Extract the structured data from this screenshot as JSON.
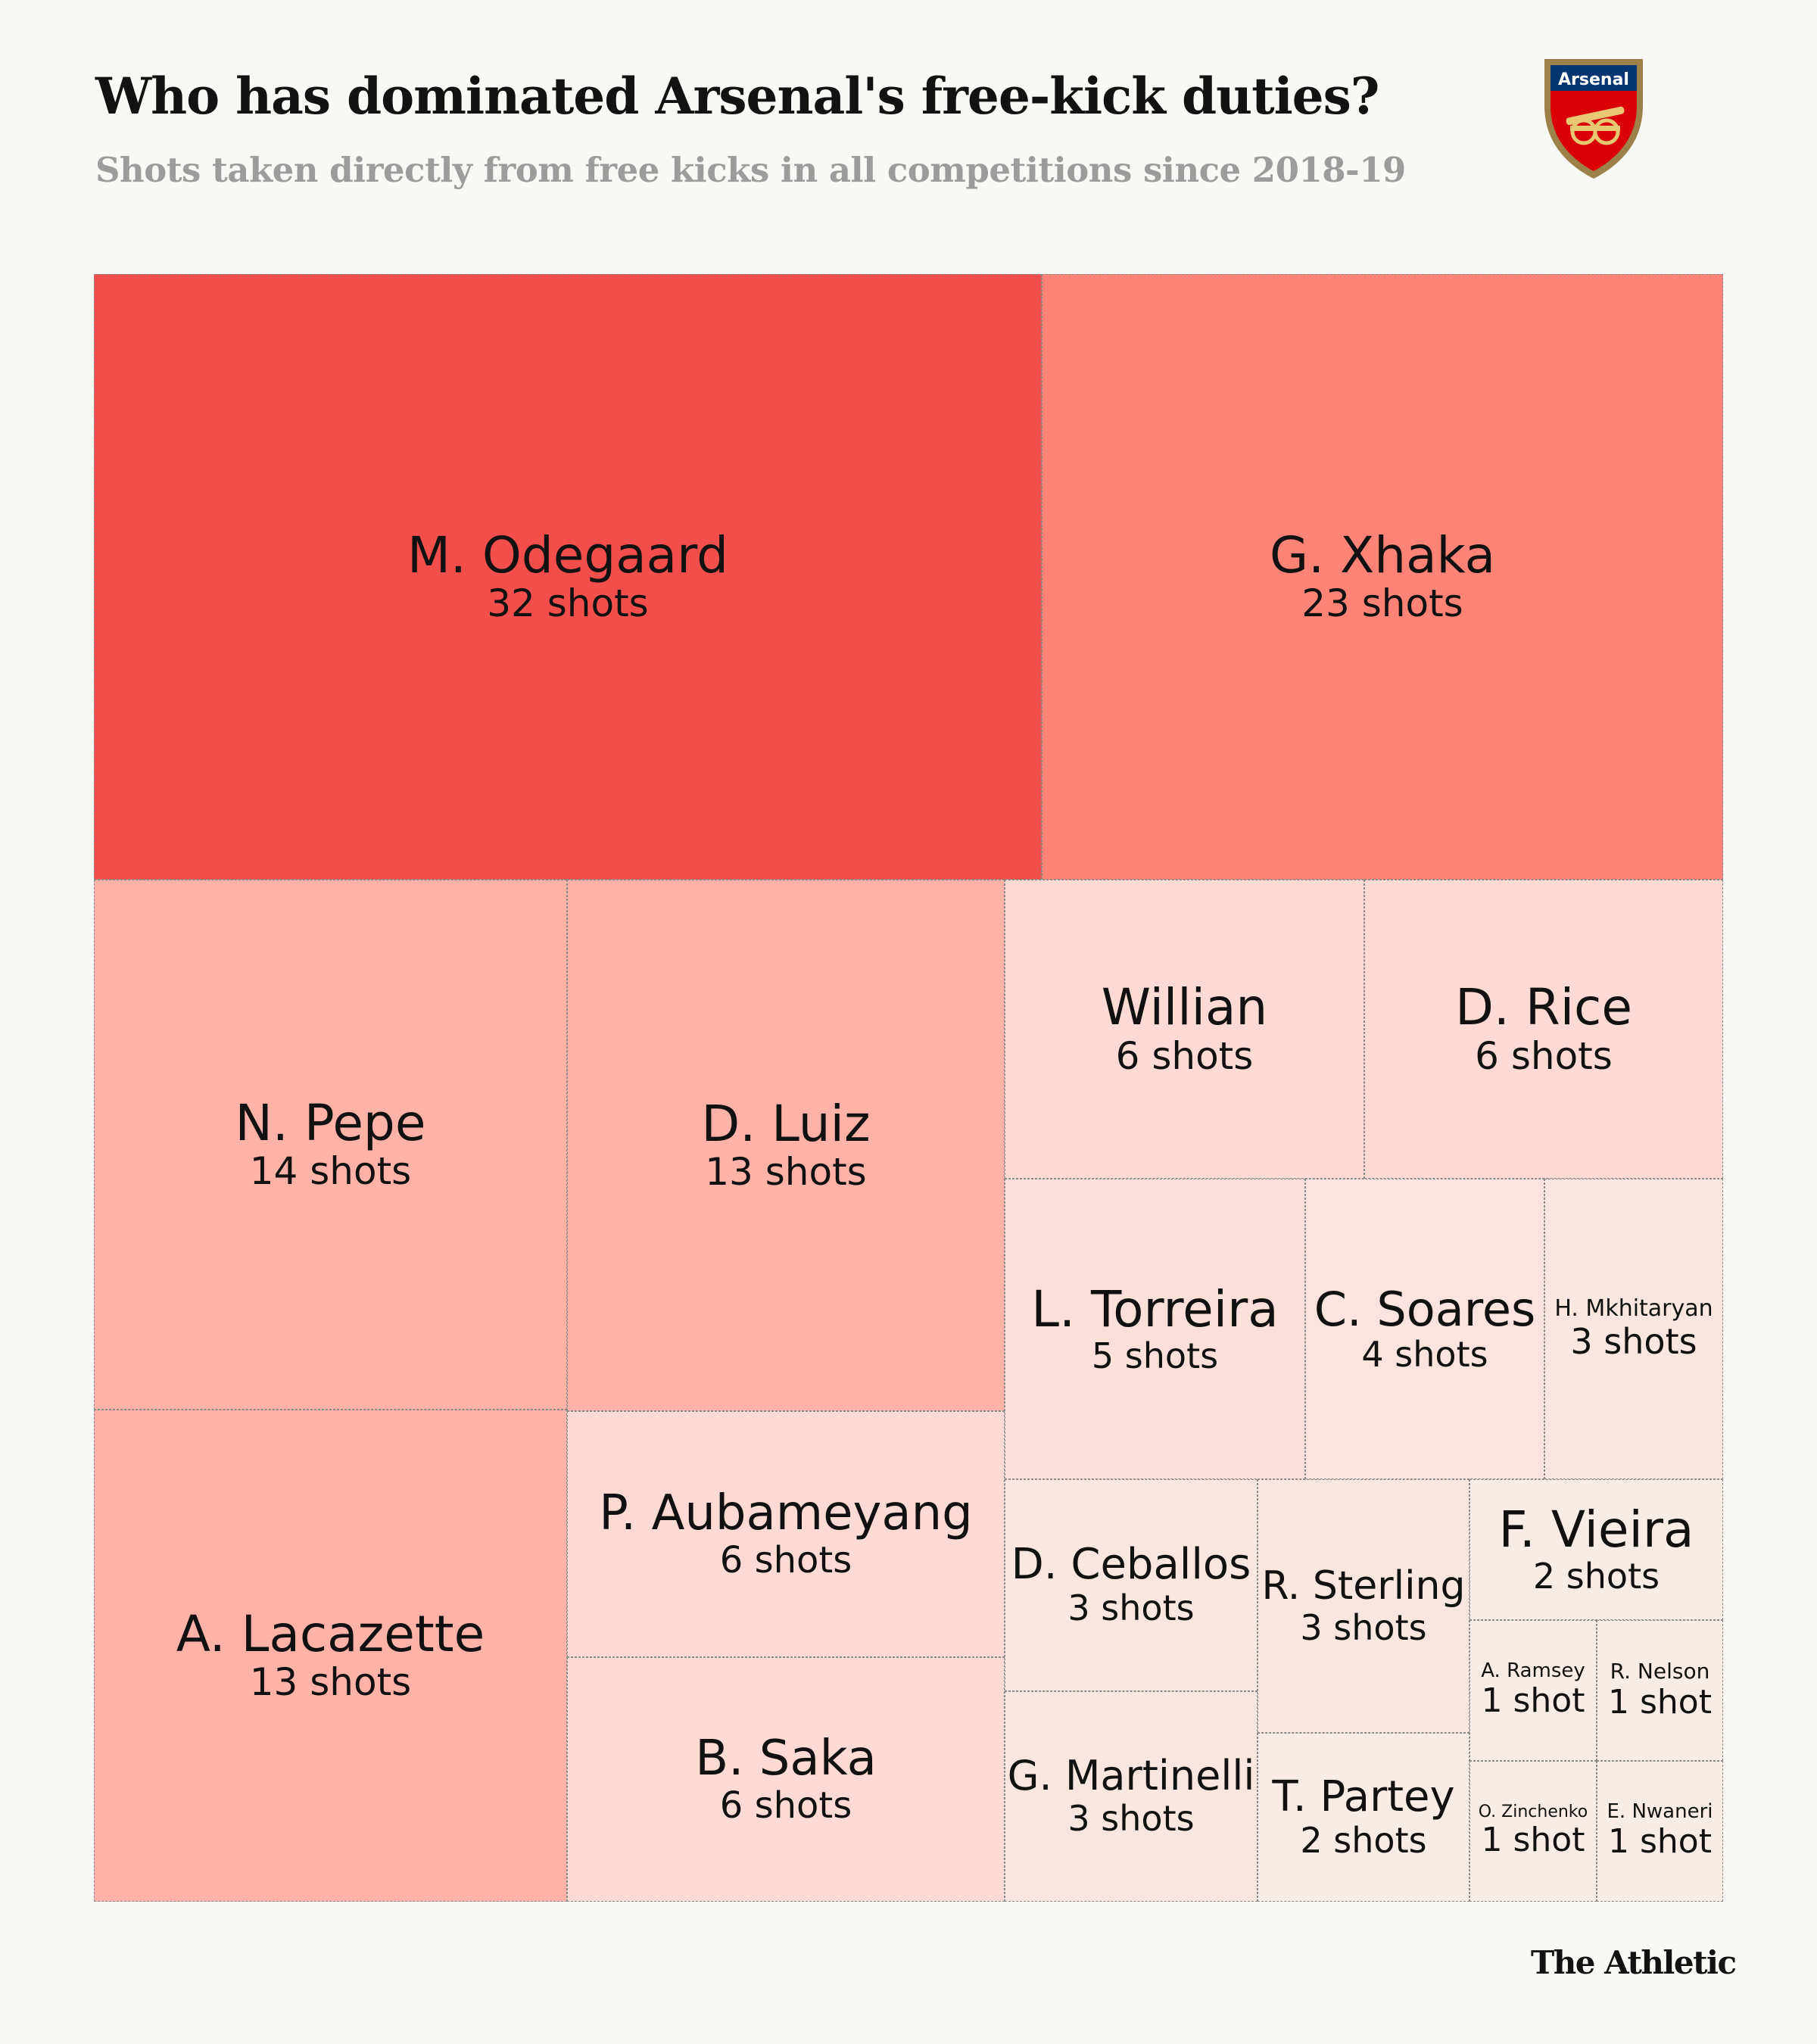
{
  "header": {
    "title": "Who has dominated Arsenal's free-kick duties?",
    "subtitle": "Shots taken directly from free kicks in all competitions since 2018-19"
  },
  "crest": {
    "label": "Arsenal",
    "colors": {
      "red": "#db0007",
      "gold": "#9c824a",
      "navy": "#063672"
    }
  },
  "chart_data": {
    "type": "treemap",
    "title": "Who has dominated Arsenal's free-kick duties?",
    "subtitle": "Shots taken directly from free kicks in all competitions since 2018-19",
    "unit_singular": "shot",
    "unit_plural": "shots",
    "items": [
      {
        "name": "M. Odegaard",
        "value": 32,
        "label": "32 shots"
      },
      {
        "name": "G. Xhaka",
        "value": 23,
        "label": "23 shots"
      },
      {
        "name": "N. Pepe",
        "value": 14,
        "label": "14 shots"
      },
      {
        "name": "D. Luiz",
        "value": 13,
        "label": "13 shots"
      },
      {
        "name": "A. Lacazette",
        "value": 13,
        "label": "13 shots"
      },
      {
        "name": "Willian",
        "value": 6,
        "label": "6 shots"
      },
      {
        "name": "D. Rice",
        "value": 6,
        "label": "6 shots"
      },
      {
        "name": "P. Aubameyang",
        "value": 6,
        "label": "6 shots"
      },
      {
        "name": "B. Saka",
        "value": 6,
        "label": "6 shots"
      },
      {
        "name": "L. Torreira",
        "value": 5,
        "label": "5 shots"
      },
      {
        "name": "C. Soares",
        "value": 4,
        "label": "4 shots"
      },
      {
        "name": "H. Mkhitaryan",
        "value": 3,
        "label": "3 shots"
      },
      {
        "name": "D. Ceballos",
        "value": 3,
        "label": "3 shots"
      },
      {
        "name": "R. Sterling",
        "value": 3,
        "label": "3 shots"
      },
      {
        "name": "G. Martinelli",
        "value": 3,
        "label": "3 shots"
      },
      {
        "name": "T. Partey",
        "value": 2,
        "label": "2 shots"
      },
      {
        "name": "F. Vieira",
        "value": 2,
        "label": "2 shots"
      },
      {
        "name": "A. Ramsey",
        "value": 1,
        "label": "1 shot"
      },
      {
        "name": "R. Nelson",
        "value": 1,
        "label": "1 shot"
      },
      {
        "name": "O. Zinchenko",
        "value": 1,
        "label": "1 shot"
      },
      {
        "name": "E. Nwaneri",
        "value": 1,
        "label": "1 shot"
      }
    ],
    "color_scale": {
      "32": "#f24e4c",
      "23": "#fd8377",
      "13-14": "#ffb2a7",
      "6": "#fddad3",
      "5": "#fbe0d9",
      "4": "#fae4dd",
      "3": "#f9e6df",
      "1-2": "#f9ebe5"
    }
  },
  "footer": {
    "brand": "The Athletic"
  }
}
